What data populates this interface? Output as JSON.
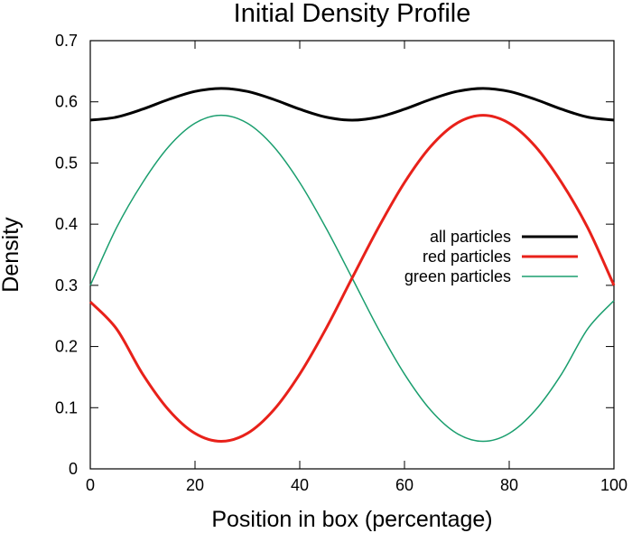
{
  "chart_data": {
    "type": "line",
    "title": "Initial Density Profile",
    "xlabel": "Position in box (percentage)",
    "ylabel": "Density",
    "xlim": [
      0,
      100
    ],
    "ylim": [
      0,
      0.7
    ],
    "xticks": [
      "0",
      "20",
      "40",
      "60",
      "80",
      "100"
    ],
    "yticks": [
      "0",
      "0.1",
      "0.2",
      "0.3",
      "0.4",
      "0.5",
      "0.6",
      "0.7"
    ],
    "grid": false,
    "legend_position": "right",
    "x": [
      0,
      5,
      10,
      15,
      20,
      25,
      30,
      35,
      40,
      45,
      50,
      55,
      60,
      65,
      70,
      75,
      80,
      85,
      90,
      95,
      100
    ],
    "series": [
      {
        "name": "all particles",
        "color": "#000000",
        "values": [
          0.57,
          0.575,
          0.588,
          0.604,
          0.617,
          0.622,
          0.617,
          0.604,
          0.588,
          0.575,
          0.57,
          0.575,
          0.588,
          0.604,
          0.617,
          0.622,
          0.617,
          0.604,
          0.588,
          0.575,
          0.57
        ]
      },
      {
        "name": "red particles",
        "color": "#e8211a",
        "values": [
          0.273,
          0.229,
          0.155,
          0.096,
          0.058,
          0.045,
          0.058,
          0.096,
          0.155,
          0.229,
          0.312,
          0.394,
          0.468,
          0.527,
          0.565,
          0.578,
          0.565,
          0.527,
          0.468,
          0.394,
          0.3
        ]
      },
      {
        "name": "green particles",
        "color": "#1a9e6e",
        "values": [
          0.3,
          0.394,
          0.468,
          0.527,
          0.565,
          0.578,
          0.565,
          0.527,
          0.468,
          0.394,
          0.312,
          0.229,
          0.155,
          0.096,
          0.058,
          0.045,
          0.058,
          0.096,
          0.155,
          0.229,
          0.275
        ]
      }
    ]
  }
}
